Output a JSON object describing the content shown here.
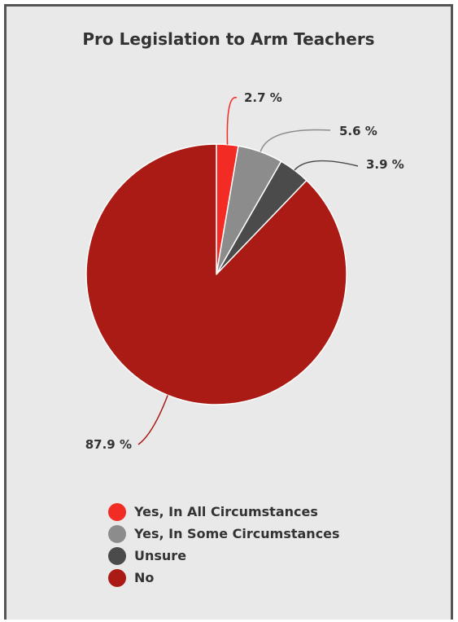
{
  "chart_data": {
    "type": "pie",
    "title": "Pro Legislation to Arm Teachers",
    "series": [
      {
        "name": "",
        "values": [
          2.7,
          5.6,
          3.9,
          87.9
        ]
      }
    ],
    "categories": [
      "Yes, In All Circumstances",
      "Yes, In Some Circumstances",
      "Unsure",
      "No"
    ],
    "data_labels": [
      "2.7 %",
      "5.6 %",
      "3.9 %",
      "87.9 %"
    ],
    "colors": [
      "#f22b24",
      "#8c8c8c",
      "#4b4b4b",
      "#aa1b15"
    ],
    "start_angle": "12 o'clock",
    "direction": "clockwise",
    "legend_position": "bottom"
  }
}
